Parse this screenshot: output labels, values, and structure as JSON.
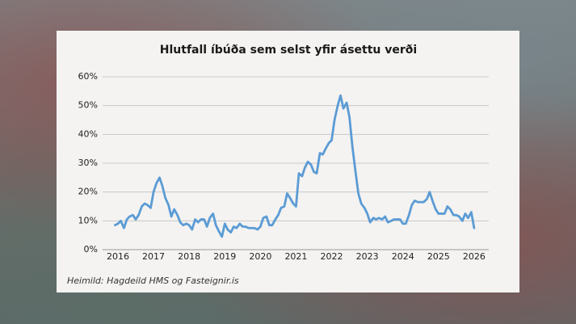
{
  "chart_data": {
    "type": "line",
    "title": "Hlutfall íbúða sem selst yfir ásettu verði",
    "source": "Heimild: Hagdeild HMS og Fasteignir.is",
    "color": "#5b9bd5",
    "grid": true,
    "x": [
      2015.92,
      2016.0,
      2016.08,
      2016.17,
      2016.25,
      2016.33,
      2016.42,
      2016.5,
      2016.58,
      2016.67,
      2016.75,
      2016.83,
      2016.92,
      2017.0,
      2017.08,
      2017.17,
      2017.25,
      2017.33,
      2017.42,
      2017.5,
      2017.58,
      2017.67,
      2017.75,
      2017.83,
      2017.92,
      2018.0,
      2018.08,
      2018.17,
      2018.25,
      2018.33,
      2018.42,
      2018.5,
      2018.58,
      2018.67,
      2018.75,
      2018.83,
      2018.92,
      2019.0,
      2019.08,
      2019.17,
      2019.25,
      2019.33,
      2019.42,
      2019.5,
      2019.58,
      2019.67,
      2019.75,
      2019.83,
      2019.92,
      2020.0,
      2020.08,
      2020.17,
      2020.25,
      2020.33,
      2020.42,
      2020.5,
      2020.58,
      2020.67,
      2020.75,
      2020.83,
      2020.92,
      2021.0,
      2021.08,
      2021.17,
      2021.25,
      2021.33,
      2021.42,
      2021.5,
      2021.58,
      2021.67,
      2021.75,
      2021.83,
      2021.92,
      2022.0,
      2022.08,
      2022.17,
      2022.25,
      2022.33,
      2022.42,
      2022.5,
      2022.58,
      2022.67,
      2022.75,
      2022.83,
      2022.92,
      2023.0,
      2023.08,
      2023.17,
      2023.25,
      2023.33,
      2023.42,
      2023.5,
      2023.58,
      2023.67,
      2023.75,
      2023.83,
      2023.92,
      2024.0,
      2024.08,
      2024.17,
      2024.25,
      2024.33,
      2024.42,
      2024.5,
      2024.58,
      2024.67,
      2024.75,
      2024.83,
      2024.92,
      2025.0,
      2025.08,
      2025.17,
      2025.25,
      2025.33,
      2025.42,
      2025.5,
      2025.58,
      2025.67,
      2025.75,
      2025.83,
      2025.92,
      2026.0
    ],
    "values": [
      8.5,
      9,
      10,
      7.5,
      10.5,
      11.5,
      12,
      10.5,
      12,
      15,
      16,
      15.5,
      14.5,
      20,
      23,
      25,
      22,
      18,
      15.5,
      11.5,
      14,
      12,
      9.5,
      8.5,
      9,
      8.5,
      7,
      10.5,
      9.5,
      10.5,
      10.5,
      8,
      11,
      12.5,
      8.5,
      6.5,
      4.5,
      9,
      7,
      6,
      8,
      7.5,
      9,
      8,
      8,
      7.5,
      7.5,
      7.5,
      7,
      8,
      11,
      11.5,
      8.5,
      8.5,
      10.5,
      12,
      14.5,
      15,
      19.5,
      18,
      16,
      15,
      26.5,
      25.5,
      28.5,
      30.5,
      29.5,
      27,
      26.5,
      33.5,
      33,
      35,
      37,
      38,
      45,
      50,
      53.5,
      49,
      51,
      46,
      36,
      27,
      19.5,
      16,
      14.5,
      12.5,
      9.5,
      11,
      10.5,
      11,
      10.5,
      11.5,
      9.5,
      10,
      10.5,
      10.5,
      10.5,
      9,
      9,
      12,
      15.5,
      17,
      16.5,
      16.5,
      16.5,
      17.5,
      20,
      17,
      14,
      12.5,
      12.5,
      12.5,
      15,
      14,
      12,
      12,
      11.5,
      10,
      12.5,
      11,
      13,
      7.5
    ],
    "xlim": [
      2015.57,
      2026.41
    ],
    "xticks": [
      2016,
      2017,
      2018,
      2019,
      2020,
      2021,
      2022,
      2023,
      2024,
      2025,
      2026
    ],
    "ylim": [
      0,
      60
    ],
    "yticks": [
      {
        "value": 0,
        "label": "0%"
      },
      {
        "value": 10,
        "label": "10%"
      },
      {
        "value": 20,
        "label": "20%"
      },
      {
        "value": 30,
        "label": "30%"
      },
      {
        "value": 40,
        "label": "40%"
      },
      {
        "value": 50,
        "label": "50%"
      },
      {
        "value": 60,
        "label": "60%"
      }
    ]
  }
}
